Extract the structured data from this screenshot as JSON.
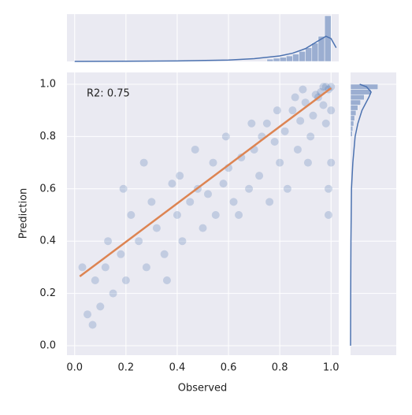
{
  "chart_data": {
    "type": "scatter",
    "xlabel": "Observed",
    "ylabel": "Prediction",
    "annotation": "R2: 0.75",
    "color": "#4c72b0",
    "xlim": [
      -0.03,
      1.03
    ],
    "ylim": [
      -0.036,
      1.045
    ],
    "xticks": [
      {
        "value": 0,
        "label": "0.0"
      },
      0.2,
      0.4,
      0.6,
      0.8,
      {
        "value": 1,
        "label": "1.0"
      }
    ],
    "yticks": [
      {
        "value": 0,
        "label": "0.0"
      },
      0.2,
      0.4,
      0.6,
      0.8,
      {
        "value": 1,
        "label": "1.0"
      }
    ],
    "grid": true,
    "x": [
      0.95,
      0.97,
      0.99,
      1.0,
      0.98,
      0.96,
      0.93,
      0.9,
      0.92,
      0.88,
      0.85,
      0.87,
      0.82,
      0.8,
      0.78,
      0.75,
      0.72,
      0.7,
      0.68,
      0.65,
      0.62,
      0.6,
      0.58,
      0.55,
      0.52,
      0.5,
      0.48,
      0.45,
      0.42,
      0.4,
      0.38,
      0.35,
      0.32,
      0.3,
      0.28,
      0.25,
      0.22,
      0.2,
      0.18,
      0.15,
      0.12,
      0.1,
      0.08,
      0.05,
      0.03,
      1.0,
      0.99,
      0.97,
      0.94,
      0.91,
      0.89,
      0.86,
      0.83,
      0.79,
      0.76,
      0.73,
      0.69,
      0.64,
      0.59,
      0.54,
      0.47,
      0.41,
      0.36,
      0.27,
      0.19,
      0.13,
      0.07,
      0.99,
      1.0,
      0.98
    ],
    "values": [
      0.95,
      0.92,
      0.98,
      0.9,
      0.85,
      0.97,
      0.88,
      0.93,
      0.8,
      0.86,
      0.9,
      0.75,
      0.82,
      0.7,
      0.78,
      0.85,
      0.65,
      0.75,
      0.6,
      0.72,
      0.55,
      0.68,
      0.62,
      0.5,
      0.58,
      0.45,
      0.6,
      0.55,
      0.4,
      0.5,
      0.62,
      0.35,
      0.45,
      0.55,
      0.3,
      0.4,
      0.5,
      0.25,
      0.35,
      0.2,
      0.3,
      0.15,
      0.25,
      0.12,
      0.3,
      0.7,
      0.6,
      0.99,
      0.96,
      0.7,
      0.98,
      0.95,
      0.6,
      0.9,
      0.55,
      0.8,
      0.85,
      0.5,
      0.8,
      0.7,
      0.75,
      0.65,
      0.25,
      0.7,
      0.6,
      0.4,
      0.08,
      0.5,
      0.99,
      0.99
    ],
    "fit": {
      "color": "#dd8452",
      "x": [
        0.02,
        1.0
      ],
      "values": [
        0.265,
        0.985
      ]
    },
    "top_marginal": {
      "type": "histogram",
      "color": "#4c72b0",
      "count_lim": [
        0,
        100
      ],
      "bins": [
        0.75,
        0.775,
        0.8,
        0.825,
        0.85,
        0.875,
        0.9,
        0.925,
        0.95,
        0.975,
        1.0
      ],
      "values": [
        5,
        7,
        9,
        12,
        16,
        22,
        30,
        40,
        55,
        100
      ],
      "kde_x": [
        0,
        0.2,
        0.4,
        0.6,
        0.7,
        0.8,
        0.85,
        0.9,
        0.95,
        0.98,
        1.0,
        1.02
      ],
      "kde_values": [
        0,
        0.5,
        1,
        3,
        6,
        12,
        18,
        28,
        45,
        55,
        50,
        30
      ]
    },
    "right_marginal": {
      "type": "histogram",
      "color": "#4c72b0",
      "count_lim": [
        0,
        100
      ],
      "bins": [
        0.8,
        0.82,
        0.84,
        0.86,
        0.88,
        0.9,
        0.92,
        0.94,
        0.96,
        0.98,
        1.0
      ],
      "values": [
        4,
        5,
        7,
        9,
        12,
        16,
        22,
        30,
        45,
        60
      ],
      "kde_x": [
        0,
        0.2,
        0.4,
        0.6,
        0.7,
        0.8,
        0.85,
        0.9,
        0.95,
        0.97,
        0.99,
        1.0
      ],
      "kde_values": [
        0,
        0.3,
        0.8,
        2,
        5,
        10,
        16,
        25,
        40,
        45,
        35,
        20
      ]
    }
  }
}
